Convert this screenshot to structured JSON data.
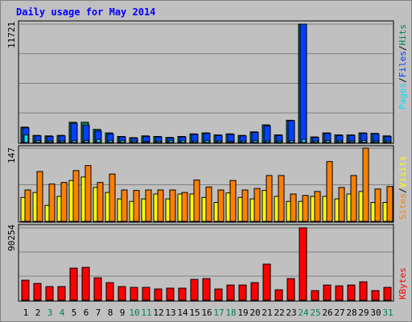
{
  "title": "Daily usage for May 2014",
  "colors": {
    "hits": "#00805c",
    "files": "#0040ff",
    "pages": "#00e0ff",
    "visits": "#ffff00",
    "sites": "#ff8000",
    "kbytes": "#ff0000",
    "weekend_day": "#00805c",
    "weekday_day": "#000000",
    "title": "#0000ff",
    "panel_bg": "#c0c0c0"
  },
  "chart_data": [
    {
      "type": "bar",
      "panel": "hits_files_pages",
      "ymax_label": "11721",
      "ylim": [
        0,
        11721
      ],
      "legend": {
        "pages": "Pages",
        "sep1": "/",
        "files": "Files",
        "sep2": "/",
        "hits": "Hits"
      },
      "categories": [
        "1",
        "2",
        "3",
        "4",
        "5",
        "6",
        "7",
        "8",
        "9",
        "10",
        "11",
        "12",
        "13",
        "14",
        "15",
        "16",
        "17",
        "18",
        "19",
        "20",
        "21",
        "22",
        "23",
        "24",
        "25",
        "26",
        "27",
        "28",
        "29",
        "30",
        "31"
      ],
      "series": [
        {
          "name": "Hits",
          "values": [
            1520,
            700,
            650,
            700,
            2000,
            2000,
            1300,
            950,
            600,
            480,
            650,
            600,
            500,
            600,
            850,
            950,
            750,
            850,
            700,
            1050,
            1750,
            750,
            2200,
            11721,
            550,
            950,
            750,
            750,
            950,
            900,
            650
          ]
        },
        {
          "name": "Files",
          "values": [
            1450,
            650,
            600,
            650,
            1900,
            1700,
            1150,
            850,
            550,
            430,
            600,
            550,
            450,
            550,
            800,
            900,
            700,
            800,
            650,
            1000,
            1650,
            700,
            2150,
            11721,
            500,
            900,
            700,
            700,
            900,
            850,
            600
          ]
        },
        {
          "name": "Pages",
          "values": [
            750,
            200,
            150,
            150,
            200,
            200,
            300,
            200,
            200,
            150,
            100,
            150,
            200,
            200,
            150,
            200,
            150,
            100,
            150,
            200,
            150,
            150,
            200,
            300,
            150,
            200,
            150,
            150,
            200,
            150,
            150
          ]
        }
      ]
    },
    {
      "type": "bar",
      "panel": "visits_sites",
      "ymax_label": "147",
      "ylim": [
        0,
        147
      ],
      "legend": {
        "visits": "Visits",
        "sep": "/",
        "sites": "Sites"
      },
      "categories": [
        "1",
        "2",
        "3",
        "4",
        "5",
        "6",
        "7",
        "8",
        "9",
        "10",
        "11",
        "12",
        "13",
        "14",
        "15",
        "16",
        "17",
        "18",
        "19",
        "20",
        "21",
        "22",
        "23",
        "24",
        "25",
        "26",
        "27",
        "28",
        "29",
        "30",
        "31"
      ],
      "series": [
        {
          "name": "Visits",
          "values": [
            48,
            58,
            32,
            50,
            82,
            89,
            68,
            58,
            45,
            40,
            45,
            55,
            45,
            55,
            55,
            48,
            38,
            57,
            48,
            45,
            62,
            50,
            40,
            40,
            50,
            50,
            45,
            55,
            60,
            38,
            38
          ]
        },
        {
          "name": "Sites",
          "values": [
            63,
            100,
            75,
            78,
            102,
            112,
            78,
            95,
            63,
            62,
            63,
            63,
            63,
            58,
            83,
            69,
            63,
            82,
            63,
            66,
            92,
            92,
            55,
            52,
            60,
            120,
            68,
            92,
            147,
            65,
            70
          ]
        }
      ]
    },
    {
      "type": "bar",
      "panel": "kbytes",
      "ymax_label": "90254",
      "ylim": [
        0,
        90254
      ],
      "legend": {
        "kbytes": "KBytes"
      },
      "categories": [
        "1",
        "2",
        "3",
        "4",
        "5",
        "6",
        "7",
        "8",
        "9",
        "10",
        "11",
        "12",
        "13",
        "14",
        "15",
        "16",
        "17",
        "18",
        "19",
        "20",
        "21",
        "22",
        "23",
        "24",
        "25",
        "26",
        "27",
        "28",
        "29",
        "30",
        "31"
      ],
      "series": [
        {
          "name": "KBytes",
          "values": [
            25000,
            21000,
            17000,
            17000,
            40000,
            41000,
            28000,
            22000,
            17000,
            16000,
            16000,
            14000,
            15000,
            15000,
            26000,
            27000,
            14000,
            19000,
            19000,
            22000,
            45000,
            13000,
            27000,
            90254,
            12000,
            19000,
            18000,
            19000,
            23000,
            12000,
            16000
          ]
        }
      ]
    }
  ],
  "day_labels": [
    "1",
    "2",
    "3",
    "4",
    "5",
    "6",
    "7",
    "8",
    "9",
    "10",
    "11",
    "12",
    "13",
    "14",
    "15",
    "16",
    "17",
    "18",
    "19",
    "20",
    "21",
    "22",
    "23",
    "24",
    "25",
    "26",
    "27",
    "28",
    "29",
    "30",
    "31"
  ],
  "weekend_days": [
    "3",
    "4",
    "10",
    "11",
    "17",
    "18",
    "24",
    "25",
    "31"
  ]
}
